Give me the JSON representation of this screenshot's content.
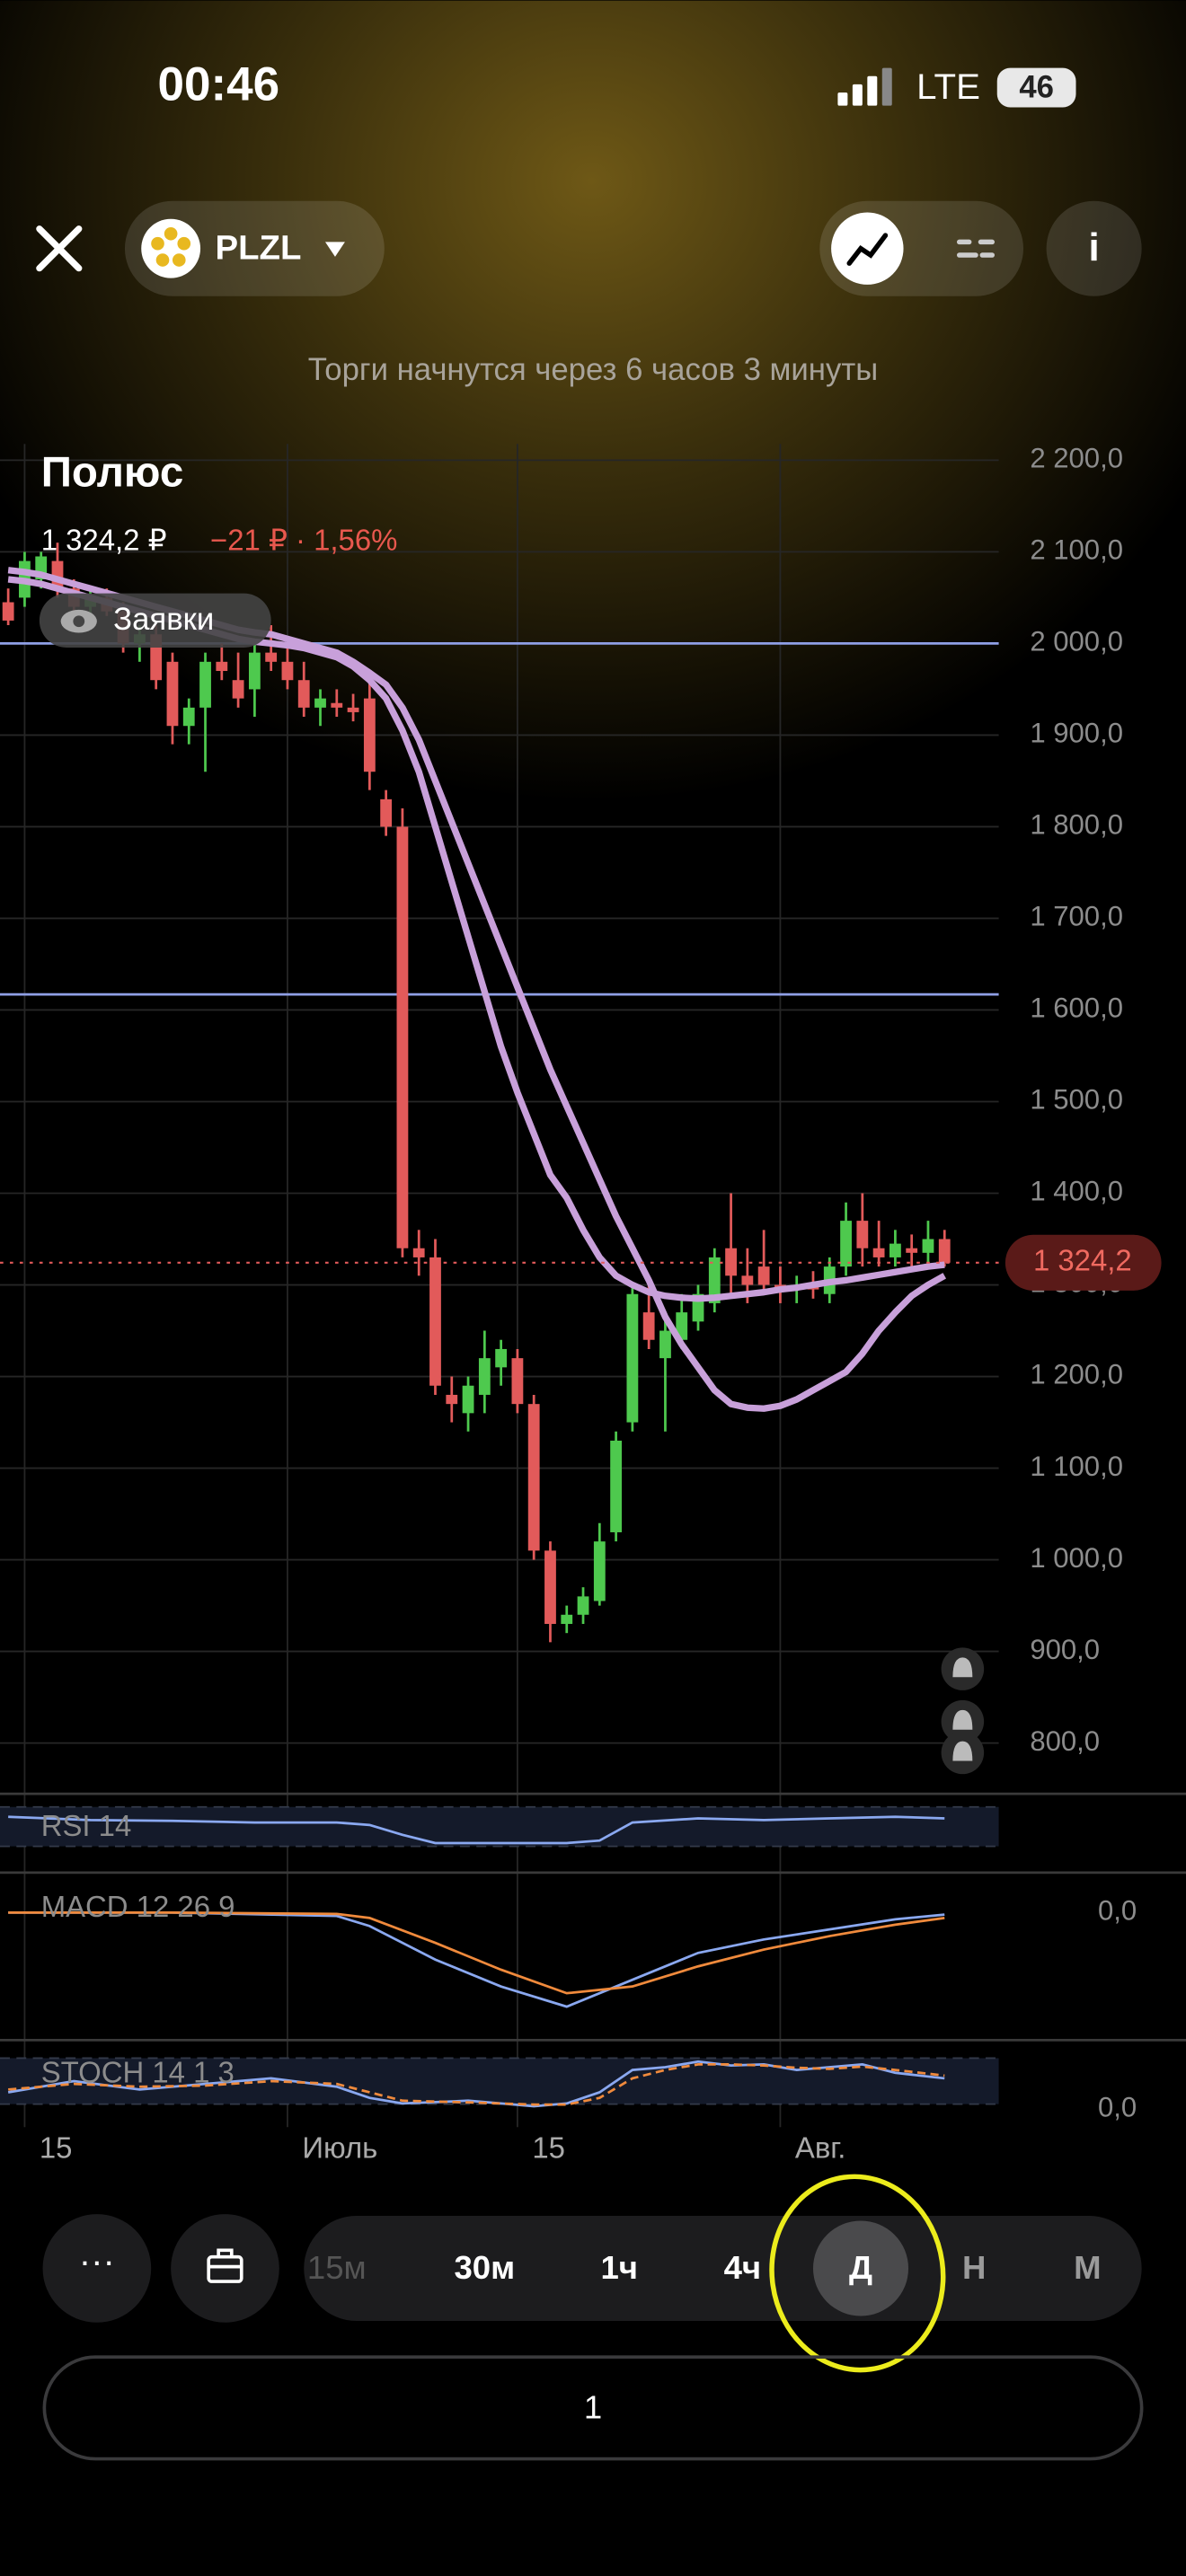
{
  "status_bar": {
    "time": "00:46",
    "network": "LTE",
    "battery": "46"
  },
  "header": {
    "ticker": "PLZL",
    "notice": "Торги начнутся через 6 часов 3 минуты"
  },
  "instrument": {
    "name": "Полюс",
    "price": "1 324,2 ₽",
    "change": "−21 ₽ · 1,56%",
    "orders_button": "Заявки"
  },
  "chart_data": {
    "type": "candlestick",
    "categories": [
      null,
      "15",
      null,
      null,
      null,
      null,
      null,
      null,
      null,
      null,
      null,
      null,
      null,
      null,
      null,
      null,
      null,
      "Июль",
      null,
      null,
      null,
      null,
      null,
      null,
      null,
      null,
      null,
      null,
      null,
      null,
      null,
      "15",
      null,
      null,
      null,
      null,
      null,
      null,
      null,
      null,
      null,
      null,
      null,
      null,
      null,
      null,
      null,
      "Авг.",
      null,
      null,
      null,
      null,
      null,
      null,
      null,
      null,
      null,
      null
    ],
    "open": [
      2045,
      2050,
      2070,
      2090,
      2060,
      2040,
      2050,
      2035,
      2000,
      2010,
      1980,
      1910,
      1930,
      1980,
      1960,
      1950,
      1990,
      1980,
      1960,
      1930,
      1935,
      1930,
      1940,
      1830,
      1800,
      1340,
      1330,
      1180,
      1160,
      1180,
      1210,
      1220,
      1170,
      1010,
      930,
      940,
      955,
      1030,
      1150,
      1270,
      1220,
      1240,
      1260,
      1280,
      1340,
      1310,
      1320,
      1300,
      1295,
      1300,
      1290,
      1320,
      1370,
      1340,
      1330,
      1340,
      1335,
      1350
    ],
    "high": [
      2060,
      2100,
      2100,
      2110,
      2070,
      2060,
      2060,
      2045,
      2020,
      2020,
      1990,
      1940,
      1990,
      2000,
      1990,
      2000,
      2020,
      2000,
      1980,
      1950,
      1950,
      1945,
      1960,
      1840,
      1820,
      1360,
      1350,
      1200,
      1200,
      1250,
      1240,
      1230,
      1180,
      1020,
      950,
      970,
      1040,
      1140,
      1300,
      1300,
      1270,
      1290,
      1300,
      1340,
      1400,
      1340,
      1360,
      1320,
      1310,
      1315,
      1330,
      1390,
      1400,
      1370,
      1360,
      1355,
      1370,
      1360
    ],
    "low": [
      2020,
      2040,
      2060,
      2050,
      2030,
      2020,
      2030,
      1990,
      1980,
      1950,
      1890,
      1890,
      1860,
      1960,
      1930,
      1920,
      1970,
      1950,
      1920,
      1910,
      1920,
      1915,
      1840,
      1790,
      1330,
      1310,
      1180,
      1150,
      1140,
      1160,
      1190,
      1160,
      1000,
      910,
      920,
      930,
      950,
      1020,
      1140,
      1230,
      1140,
      1230,
      1250,
      1270,
      1290,
      1280,
      1290,
      1280,
      1280,
      1285,
      1280,
      1310,
      1320,
      1320,
      1320,
      1320,
      1325,
      1320
    ],
    "close": [
      2025,
      2090,
      2095,
      2060,
      2040,
      2050,
      2035,
      2000,
      2010,
      1960,
      1910,
      1930,
      1980,
      1970,
      1940,
      1990,
      1980,
      1960,
      1930,
      1940,
      1930,
      1925,
      1860,
      1800,
      1340,
      1330,
      1190,
      1170,
      1190,
      1220,
      1230,
      1170,
      1010,
      930,
      940,
      960,
      1020,
      1130,
      1290,
      1240,
      1250,
      1270,
      1290,
      1330,
      1310,
      1300,
      1300,
      1295,
      1300,
      1295,
      1320,
      1370,
      1340,
      1330,
      1345,
      1335,
      1350,
      1324.2
    ],
    "up_color": "#4ec94e",
    "down_color": "#e25a5a",
    "moving_averages": [
      {
        "color": "#c8a0da",
        "values": [
          2070,
          2068,
          2065,
          2060,
          2055,
          2050,
          2045,
          2040,
          2035,
          2030,
          2025,
          2020,
          2015,
          2010,
          2005,
          2002,
          2000,
          1998,
          1995,
          1990,
          1985,
          1975,
          1960,
          1940,
          1905,
          1860,
          1800,
          1740,
          1680,
          1620,
          1560,
          1510,
          1465,
          1420,
          1395,
          1360,
          1330,
          1310,
          1300,
          1292,
          1288,
          1286,
          1285,
          1286,
          1288,
          1290,
          1292,
          1295,
          1297,
          1300,
          1303,
          1305,
          1308,
          1311,
          1314,
          1317,
          1320,
          1322
        ]
      },
      {
        "color": "#c8a0da",
        "values": [
          2080,
          2078,
          2075,
          2070,
          2065,
          2060,
          2055,
          2050,
          2045,
          2040,
          2035,
          2030,
          2025,
          2020,
          2015,
          2012,
          2010,
          2005,
          2000,
          1995,
          1990,
          1980,
          1968,
          1955,
          1930,
          1895,
          1850,
          1805,
          1760,
          1715,
          1670,
          1625,
          1580,
          1535,
          1495,
          1455,
          1415,
          1375,
          1340,
          1305,
          1265,
          1235,
          1210,
          1185,
          1170,
          1166,
          1165,
          1168,
          1175,
          1185,
          1195,
          1205,
          1225,
          1250,
          1270,
          1288,
          1300,
          1310
        ]
      }
    ],
    "ylim": [
      750,
      2250
    ],
    "yticks": [
      {
        "value": 800,
        "label": "800,0"
      },
      {
        "value": 900,
        "label": "900,0"
      },
      {
        "value": 1000,
        "label": "1 000,0"
      },
      {
        "value": 1100,
        "label": "1 100,0"
      },
      {
        "value": 1200,
        "label": "1 200,0"
      },
      {
        "value": 1300,
        "label": "1 300,0"
      },
      {
        "value": 1400,
        "label": "1 400,0"
      },
      {
        "value": 1500,
        "label": "1 500,0"
      },
      {
        "value": 1600,
        "label": "1 600,0"
      },
      {
        "value": 1700,
        "label": "1 700,0"
      },
      {
        "value": 1800,
        "label": "1 800,0"
      },
      {
        "value": 1900,
        "label": "1 900,0"
      },
      {
        "value": 2000,
        "label": "2 000,0"
      },
      {
        "value": 2100,
        "label": "2 100,0"
      },
      {
        "value": 2200,
        "label": "2 200,0"
      }
    ],
    "levels": [
      2000,
      1617
    ],
    "level_color": "#8f9fe6",
    "last_price": {
      "value": 1324.2,
      "label": "1 324,2"
    },
    "indicators": [
      {
        "label": "RSI 14",
        "ylim": [
          20,
          80
        ],
        "yticks": [],
        "lines": [
          {
            "color": "#8aa8f0",
            "x": [
              0,
              5,
              10,
              15,
              20,
              22,
              24,
              26,
              30,
              34,
              36,
              38,
              42,
              46,
              50,
              54,
              57
            ],
            "values": [
              62,
              58,
              57,
              55,
              55,
              52,
              40,
              30,
              30,
              30,
              33,
              55,
              60,
              58,
              60,
              62,
              60
            ]
          }
        ]
      },
      {
        "label": "MACD 12 26 9",
        "ylim": [
          -180,
          40
        ],
        "yticks": [
          {
            "value": 0,
            "label": "0,0"
          }
        ],
        "lines": [
          {
            "color": "#8aa8f0",
            "x": [
              0,
              10,
              20,
              22,
              26,
              30,
              34,
              38,
              42,
              46,
              50,
              54,
              57
            ],
            "values": [
              0,
              0,
              -5,
              -20,
              -70,
              -110,
              -140,
              -100,
              -60,
              -40,
              -25,
              -10,
              -3
            ]
          },
          {
            "color": "#f08a3c",
            "x": [
              0,
              10,
              20,
              22,
              26,
              30,
              34,
              38,
              42,
              46,
              50,
              54,
              57
            ],
            "values": [
              0,
              0,
              -2,
              -8,
              -45,
              -85,
              -120,
              -110,
              -80,
              -55,
              -35,
              -18,
              -8
            ]
          }
        ]
      },
      {
        "label": "STOCH 14 1 3",
        "ylim": [
          0,
          100
        ],
        "yticks": [
          {
            "value": 0,
            "label": "0,0"
          }
        ],
        "lines": [
          {
            "color": "#8aa8f0",
            "x": [
              0,
              4,
              8,
              12,
              16,
              20,
              22,
              24,
              28,
              32,
              34,
              36,
              38,
              40,
              42,
              44,
              46,
              48,
              50,
              52,
              54,
              57
            ],
            "values": [
              30,
              50,
              35,
              45,
              55,
              40,
              20,
              10,
              15,
              5,
              10,
              30,
              70,
              75,
              85,
              78,
              80,
              70,
              75,
              80,
              65,
              55
            ]
          },
          {
            "color": "#f08a3c",
            "x": [
              0,
              4,
              8,
              12,
              16,
              20,
              22,
              24,
              28,
              32,
              34,
              36,
              38,
              40,
              42,
              44,
              46,
              48,
              50,
              52,
              54,
              57
            ],
            "values": [
              35,
              45,
              40,
              42,
              50,
              45,
              30,
              15,
              12,
              8,
              8,
              20,
              55,
              70,
              80,
              80,
              78,
              74,
              72,
              76,
              70,
              60
            ]
          }
        ]
      }
    ]
  },
  "toolbar": {
    "intervals": [
      "15м",
      "30м",
      "1ч",
      "4ч",
      "Д",
      "Н",
      "М"
    ],
    "selected": 4,
    "quantity": "1"
  }
}
